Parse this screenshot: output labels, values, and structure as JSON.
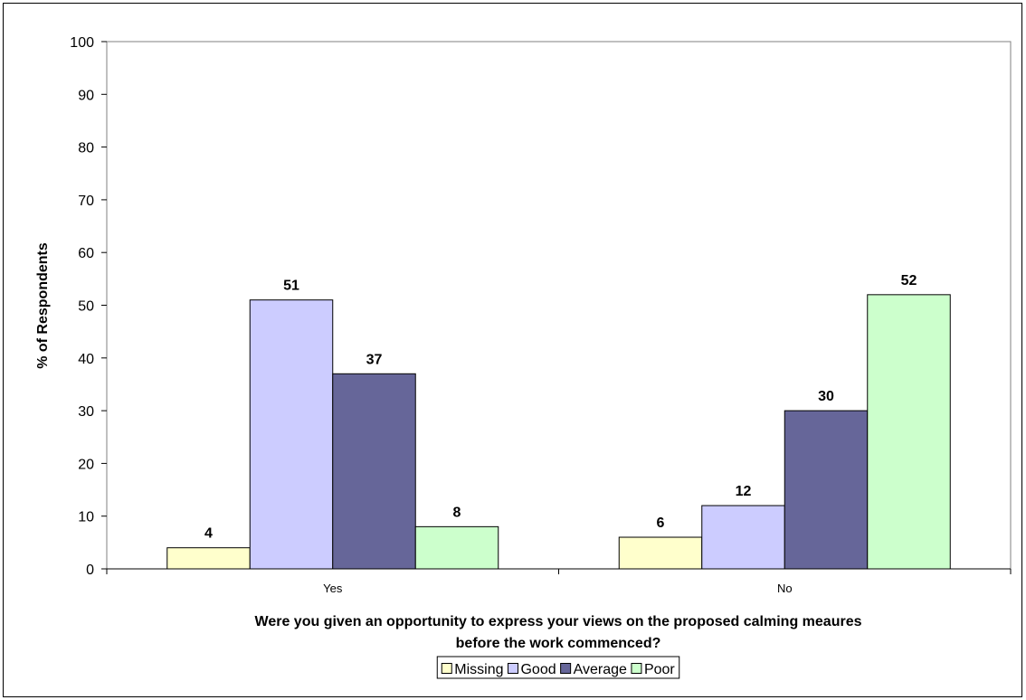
{
  "chart_data": {
    "type": "bar",
    "categories": [
      "Yes",
      "No"
    ],
    "series": [
      {
        "name": "Missing",
        "values": [
          4,
          6
        ],
        "data_labels": [
          "4",
          "6"
        ],
        "color": "#FFFFCC"
      },
      {
        "name": "Good",
        "values": [
          51,
          12
        ],
        "data_labels": [
          "51",
          "12"
        ],
        "color": "#CCCCFF"
      },
      {
        "name": "Average",
        "values": [
          37,
          30
        ],
        "data_labels": [
          "37",
          "30"
        ],
        "color": "#666699"
      },
      {
        "name": "Poor",
        "values": [
          8,
          52
        ],
        "data_labels": [
          "8",
          "52"
        ],
        "color": "#CCFFCC"
      }
    ],
    "ylabel": "% of Respondents",
    "xlabel_lines": [
      "Were you given an opportunity to express your views on the proposed calming meaures",
      "before the work commenced?"
    ],
    "ylim": [
      0,
      100
    ],
    "yticks": [
      0,
      10,
      20,
      30,
      40,
      50,
      60,
      70,
      80,
      90,
      100
    ],
    "ytick_labels": [
      "0",
      "10",
      "20",
      "30",
      "40",
      "50",
      "60",
      "70",
      "80",
      "90",
      "100"
    ],
    "grid": false,
    "legend_position": "bottom"
  }
}
